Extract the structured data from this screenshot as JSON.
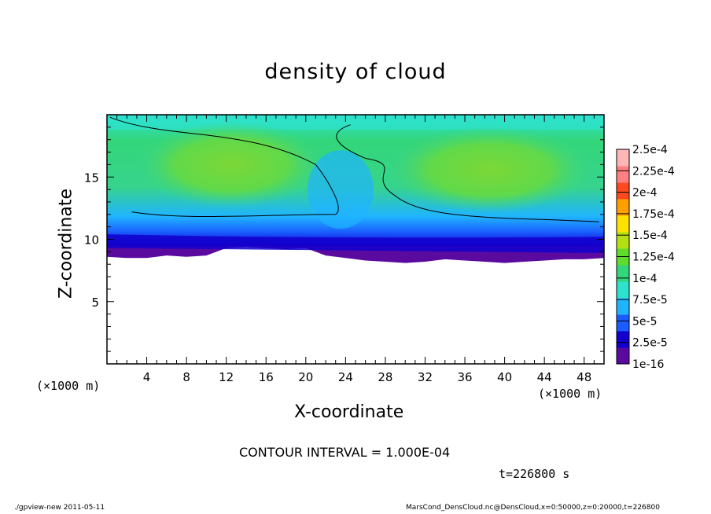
{
  "chart_data": {
    "type": "heatmap",
    "title": "density of cloud",
    "xlabel": "X-coordinate",
    "ylabel": "Z-coordinate",
    "x_unit": "(×1000 m)",
    "y_unit": "(×1000 m)",
    "xlim": [
      0,
      50
    ],
    "ylim": [
      0,
      20
    ],
    "x_ticks": [
      4,
      8,
      12,
      16,
      20,
      24,
      28,
      32,
      36,
      40,
      44,
      48
    ],
    "y_ticks": [
      5,
      10,
      15
    ],
    "colorbar": {
      "levels": [
        "1e-16",
        "2.5e-5",
        "5e-5",
        "7.5e-5",
        "1e-4",
        "1.25e-4",
        "1.5e-4",
        "1.75e-4",
        "2e-4",
        "2.25e-4",
        "2.5e-4"
      ],
      "colors": [
        "#5b0aa0",
        "#1200cc",
        "#1a5cff",
        "#20b4ff",
        "#2de3d0",
        "#33d67a",
        "#5fdc2c",
        "#b3e010",
        "#ffe000",
        "#ffa000",
        "#ff4a20",
        "#ff8080",
        "#ffb6b6"
      ]
    },
    "cloud_base_z": [
      8.6,
      8.5,
      8.5,
      8.7,
      8.6,
      8.7,
      9.3,
      9.4,
      9.3,
      9.2,
      9.3,
      8.7,
      8.5,
      8.3,
      8.2,
      8.1,
      8.2,
      8.4,
      8.3,
      8.2,
      8.1,
      8.2,
      8.3,
      8.4,
      8.4,
      8.5
    ]
  },
  "annotations": {
    "contour_interval": "CONTOUR INTERVAL = 1.000E-04",
    "time": "t=226800 s"
  },
  "footer": {
    "left": "./gpview-new  2011-05-11",
    "right": "MarsCond_DensCloud.nc@DensCloud,x=0:50000,z=0:20000,t=226800"
  }
}
